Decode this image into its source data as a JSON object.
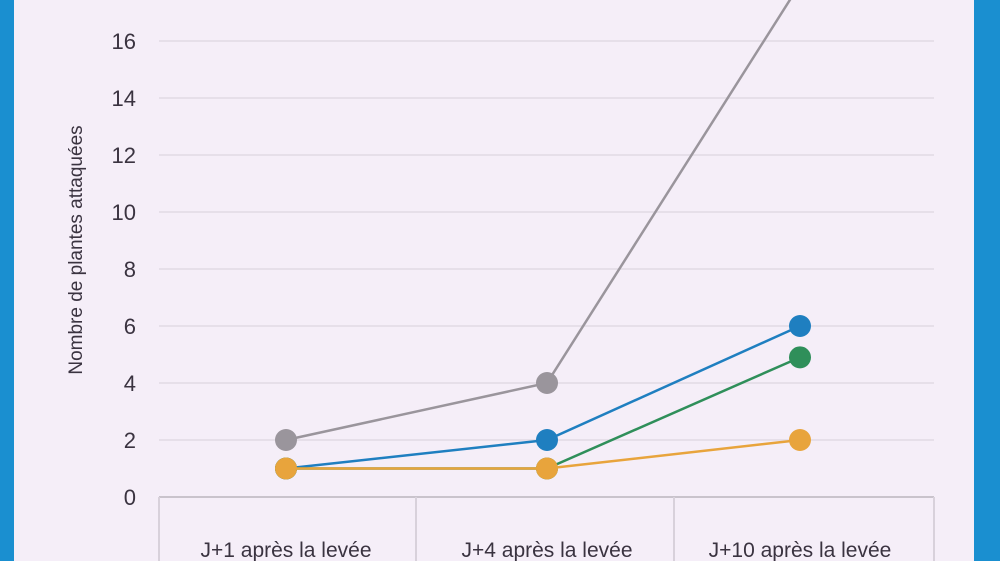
{
  "chart_data": {
    "type": "line",
    "title": "",
    "ylabel": "Nombre de plantes attaquées",
    "xlabel": "",
    "categories": [
      "J+1 après la levée",
      "J+4 après la levée",
      "J+10 après la levée"
    ],
    "ylim": [
      0,
      18
    ],
    "yticks": [
      "0",
      "2",
      "4",
      "6",
      "8",
      "10",
      "12",
      "14",
      "16"
    ],
    "grid": true,
    "series": [
      {
        "color": "#9a959c",
        "values": [
          2,
          4,
          18
        ]
      },
      {
        "color": "#1f7fc0",
        "values": [
          1,
          2,
          6
        ]
      },
      {
        "color": "#2f8f5a",
        "values": [
          1,
          1,
          4.9
        ]
      },
      {
        "color": "#e8a43c",
        "values": [
          1,
          1,
          2
        ]
      }
    ]
  }
}
